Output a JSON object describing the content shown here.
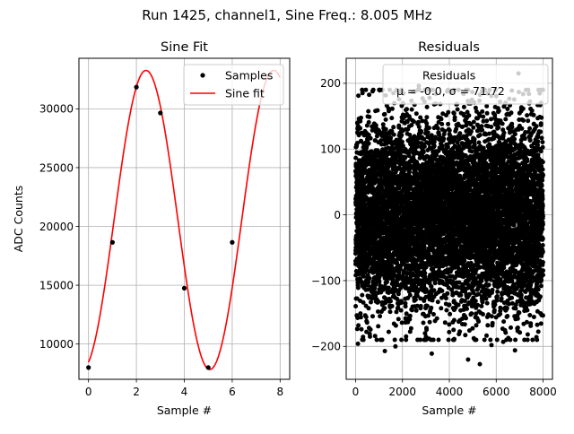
{
  "suptitle": "Run 1425, channel1, Sine Freq.: 8.005 MHz",
  "chart_data": [
    {
      "type": "line",
      "title": "Sine Fit",
      "xlabel": "Sample #",
      "ylabel": "ADC Counts",
      "xlim": [
        -0.4,
        8.4
      ],
      "ylim": [
        7000,
        34300
      ],
      "xticks": [
        0,
        2,
        4,
        6,
        8
      ],
      "yticks": [
        10000,
        15000,
        20000,
        25000,
        30000
      ],
      "grid": true,
      "legend_position": "top-right",
      "series": [
        {
          "name": "Samples",
          "kind": "scatter",
          "color": "#000000",
          "x": [
            0,
            1,
            2,
            3,
            4,
            5,
            6
          ],
          "y": [
            8000,
            18650,
            31850,
            29650,
            14750,
            8000,
            18650
          ]
        },
        {
          "name": "Sine fit",
          "kind": "line",
          "color": "#ff0000",
          "function": {
            "offset": 20550,
            "amplitude": 12720,
            "period": 5.332,
            "phase_center": 2.4
          },
          "x_range": [
            0,
            8
          ]
        }
      ]
    },
    {
      "type": "scatter",
      "title": "Residuals",
      "xlabel": "Sample #",
      "ylabel": "",
      "xlim": [
        -400,
        8400
      ],
      "ylim": [
        -250,
        238
      ],
      "xticks": [
        0,
        2000,
        4000,
        6000,
        8000
      ],
      "yticks": [
        -200,
        -100,
        0,
        100,
        200
      ],
      "grid": true,
      "legend_position": "top-right",
      "series": [
        {
          "name": "Residuals",
          "kind": "scatter",
          "color": "#000000",
          "n_points": 8000,
          "mean": -0.0,
          "std": 71.72,
          "outliers": [
            {
              "x": 2700,
              "y": 196
            },
            {
              "x": 6950,
              "y": 215
            },
            {
              "x": 1250,
              "y": -207
            },
            {
              "x": 3250,
              "y": -211
            },
            {
              "x": 4800,
              "y": -220
            },
            {
              "x": 5300,
              "y": -227
            },
            {
              "x": 1700,
              "y": -200
            },
            {
              "x": 5800,
              "y": -198
            },
            {
              "x": 6300,
              "y": -193
            },
            {
              "x": 6800,
              "y": -206
            },
            {
              "x": 100,
              "y": -196
            }
          ]
        }
      ],
      "legend_stats_text": "μ = -0.0, σ = 71.72"
    }
  ]
}
